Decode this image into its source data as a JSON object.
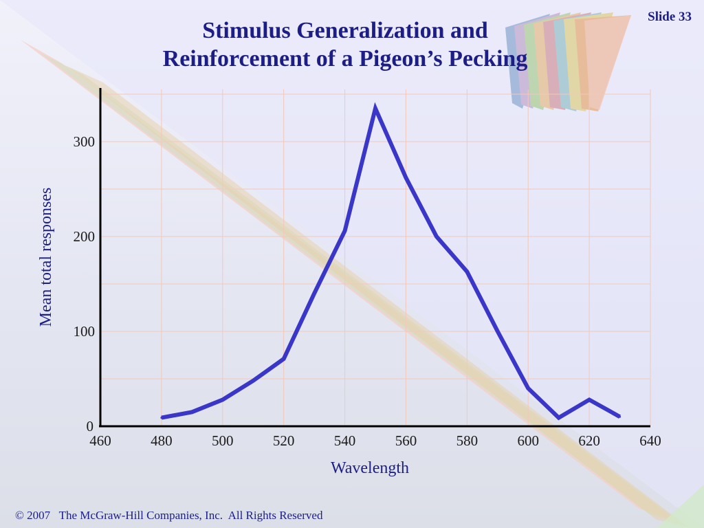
{
  "slide": {
    "title_line1": "Stimulus Generalization and",
    "title_line2": "Reinforcement of a Pigeon’s Pecking",
    "number": "Slide 33",
    "footer": "© 2007   The McGraw-Hill Companies, Inc.  All Rights Reserved"
  },
  "colors": {
    "title": "#1d1d86",
    "line": "#3a37c8",
    "grid": "#f1c9bb",
    "axis": "#000000"
  },
  "chart_data": {
    "type": "line",
    "title": "Stimulus Generalization and Reinforcement of a Pigeon’s Pecking",
    "xlabel": "Wavelength",
    "ylabel": "Mean total responses",
    "xlim": [
      460,
      640
    ],
    "ylim": [
      0,
      350
    ],
    "xticks": [
      460,
      480,
      500,
      520,
      540,
      560,
      580,
      600,
      620,
      640
    ],
    "yticks": [
      0,
      100,
      200,
      300
    ],
    "grid": true,
    "series": [
      {
        "x": [
          480,
          490,
          500,
          510,
          520,
          530,
          540,
          550,
          560,
          570,
          580,
          590,
          600,
          610,
          620,
          630
        ],
        "y": [
          9,
          15,
          28,
          48,
          71,
          140,
          206,
          335,
          262,
          200,
          163,
          100,
          40,
          9,
          28,
          10
        ]
      }
    ]
  }
}
